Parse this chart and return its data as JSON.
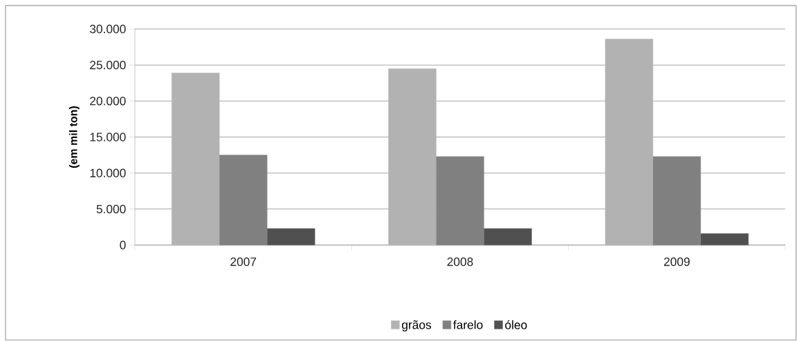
{
  "chart_data": {
    "type": "bar",
    "ylabel": "(em mil ton)",
    "categories": [
      "2007",
      "2008",
      "2009"
    ],
    "series": [
      {
        "name": "grãos",
        "color": "#b2b2b2",
        "values": [
          23900,
          24500,
          28600
        ]
      },
      {
        "name": "farelo",
        "color": "#808080",
        "values": [
          12500,
          12300,
          12300
        ]
      },
      {
        "name": "óleo",
        "color": "#505050",
        "values": [
          2300,
          2300,
          1600
        ]
      }
    ],
    "ylim": [
      0,
      30000
    ],
    "yticks": [
      0,
      {
        "value": 5000,
        "label": "5.000"
      },
      {
        "value": 10000,
        "label": "10.000"
      },
      {
        "value": 15000,
        "label": "15.000"
      },
      {
        "value": 20000,
        "label": "20.000"
      },
      {
        "value": 25000,
        "label": "25.000"
      },
      {
        "value": 30000,
        "label": "30.000"
      }
    ],
    "grid": "y",
    "legend": "bottom"
  }
}
